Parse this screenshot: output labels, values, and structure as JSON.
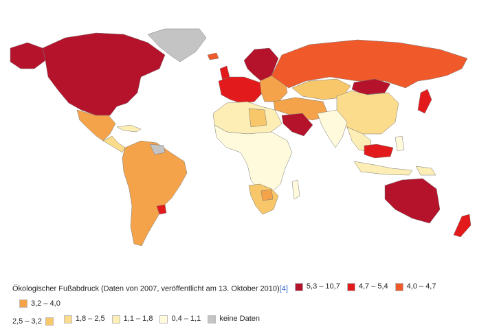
{
  "legend": {
    "caption": "Ökologischer Fußabdruck (Daten von 2007, veröffentlicht am 13. Oktober 2010)",
    "reference": "[4]",
    "classes": [
      {
        "label": "5,3 – 10,7",
        "color": "#b5132b"
      },
      {
        "label": "4,7 – 5,4",
        "color": "#e31a1c"
      },
      {
        "label": "4,0 – 4,7",
        "color": "#f05a2b"
      },
      {
        "label": "3,2 – 4,0",
        "color": "#f5a34a"
      },
      {
        "label": "2,5 – 3,2",
        "color": "#f8c76a"
      },
      {
        "label": "1,8 – 2,5",
        "color": "#fbdc8c"
      },
      {
        "label": "1,1 – 1,8",
        "color": "#fdeeb5"
      },
      {
        "label": "0,4 – 1,1",
        "color": "#fffadc"
      },
      {
        "label": "keine Daten",
        "color": "#c4c4c4"
      }
    ]
  },
  "regions": [
    {
      "name": "north-america",
      "class": 0
    },
    {
      "name": "alaska",
      "class": 0
    },
    {
      "name": "greenland",
      "class": 8
    },
    {
      "name": "mexico",
      "class": 3
    },
    {
      "name": "central-america",
      "class": 5
    },
    {
      "name": "caribbean",
      "class": 6
    },
    {
      "name": "south-america",
      "class": 3
    },
    {
      "name": "guianas",
      "class": 8
    },
    {
      "name": "uruguay",
      "class": 1
    },
    {
      "name": "scandinavia",
      "class": 0
    },
    {
      "name": "western-europe",
      "class": 1
    },
    {
      "name": "eastern-europe",
      "class": 3
    },
    {
      "name": "russia",
      "class": 2
    },
    {
      "name": "mongolia",
      "class": 0
    },
    {
      "name": "kazakhstan",
      "class": 4
    },
    {
      "name": "china",
      "class": 5
    },
    {
      "name": "japan",
      "class": 1
    },
    {
      "name": "middle-east",
      "class": 3
    },
    {
      "name": "arabian-peninsula",
      "class": 0
    },
    {
      "name": "india",
      "class": 7
    },
    {
      "name": "southeast-asia",
      "class": 6
    },
    {
      "name": "malaysia",
      "class": 1
    },
    {
      "name": "indonesia",
      "class": 6
    },
    {
      "name": "north-africa",
      "class": 6
    },
    {
      "name": "libya",
      "class": 4
    },
    {
      "name": "sub-saharan-africa",
      "class": 7
    },
    {
      "name": "southern-africa",
      "class": 4
    },
    {
      "name": "botswana",
      "class": 3
    },
    {
      "name": "madagascar",
      "class": 7
    },
    {
      "name": "australia",
      "class": 0
    },
    {
      "name": "new-zealand",
      "class": 1
    },
    {
      "name": "papua-new-guinea",
      "class": 6
    },
    {
      "name": "iceland",
      "class": 2
    },
    {
      "name": "uk-ireland",
      "class": 1
    },
    {
      "name": "philippines",
      "class": 7
    }
  ]
}
